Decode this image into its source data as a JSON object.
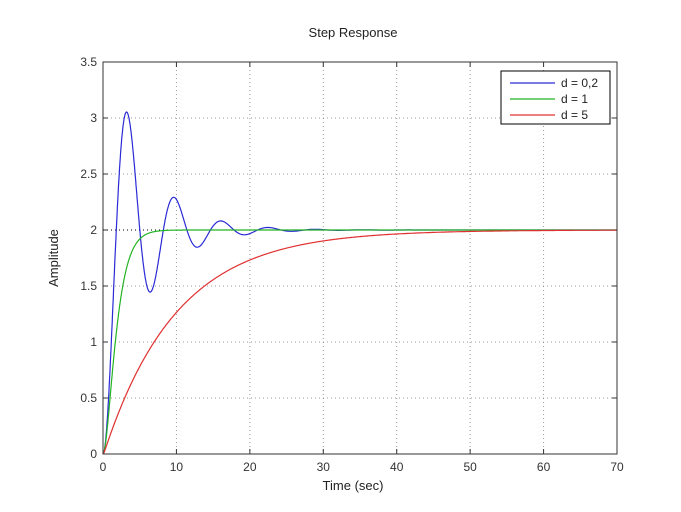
{
  "chart_data": {
    "type": "line",
    "title": "Step Response",
    "xlabel": "Time (sec)",
    "ylabel": "Amplitude",
    "xlim": [
      0,
      70
    ],
    "ylim": [
      0,
      3.5
    ],
    "xticks": [
      0,
      10,
      20,
      30,
      40,
      50,
      60,
      70
    ],
    "yticks": [
      0,
      0.5,
      1,
      1.5,
      2,
      2.5,
      3,
      3.5
    ],
    "xtick_labels": [
      "0",
      "10",
      "20",
      "30",
      "40",
      "50",
      "60",
      "70"
    ],
    "ytick_labels": [
      "0",
      "0.5",
      "1",
      "1.5",
      "2",
      "2.5",
      "3",
      "3.5"
    ],
    "grid": true,
    "legend_position": "top-right",
    "steady_state": 2,
    "model": "second-order step response, gain 2, natural frequency 1 rad/s",
    "series": [
      {
        "name": "d = 0,2",
        "damping": 0.2,
        "gain": 2,
        "wn": 1,
        "color": "#2a2ad6",
        "peak": {
          "t": 3.2,
          "y": 3.05
        }
      },
      {
        "name": "d = 1",
        "damping": 1,
        "gain": 2,
        "wn": 1,
        "color": "#22b422"
      },
      {
        "name": "d = 5",
        "damping": 5,
        "gain": 2,
        "wn": 1,
        "color": "#e03030"
      }
    ]
  }
}
